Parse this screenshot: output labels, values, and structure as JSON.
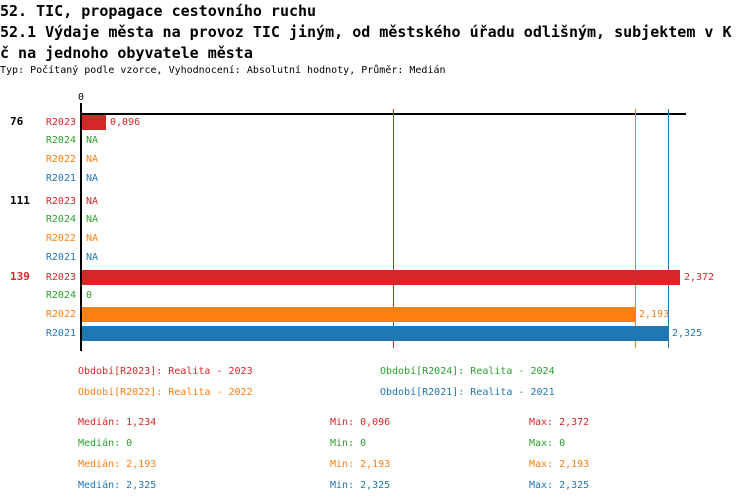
{
  "title": {
    "line1": "52. TIC, propagace cestovního ruchu",
    "line2": "52.1 Výdaje města na provoz TIC jiným, od městského úřadu odlišným, subjektem v K",
    "line3": "č na jednoho obyvatele města",
    "subtitle": "Typ: Počítaný podle vzorce, Vyhodnocení: Absolutní hodnoty, Průměr: Medián"
  },
  "colors": {
    "R2023": "#d62728",
    "R2024": "#2ca02c",
    "R2022": "#ff7f0e",
    "R2021": "#1f77b4",
    "axis": "#000000"
  },
  "axis": {
    "origin_tick_label": "0"
  },
  "chart_data": {
    "type": "bar",
    "orientation": "horizontal",
    "xlim": [
      0,
      2.39
    ],
    "x_tick_labels": [
      "0"
    ],
    "grid": false,
    "series_order": [
      "R2023",
      "R2024",
      "R2022",
      "R2021"
    ],
    "groups": [
      {
        "label": "76",
        "label_color": "#000000",
        "rows": [
          {
            "series": "R2023",
            "value": 0.096,
            "value_label": "0,096"
          },
          {
            "series": "R2024",
            "value": null,
            "value_label": "NA"
          },
          {
            "series": "R2022",
            "value": null,
            "value_label": "NA"
          },
          {
            "series": "R2021",
            "value": null,
            "value_label": "NA"
          }
        ]
      },
      {
        "label": "111",
        "label_color": "#000000",
        "rows": [
          {
            "series": "R2023",
            "value": null,
            "value_label": "NA"
          },
          {
            "series": "R2024",
            "value": null,
            "value_label": "NA"
          },
          {
            "series": "R2022",
            "value": null,
            "value_label": "NA"
          },
          {
            "series": "R2021",
            "value": null,
            "value_label": "NA"
          }
        ]
      },
      {
        "label": "139",
        "label_color": "#d62728",
        "rows": [
          {
            "series": "R2023",
            "value": 2.372,
            "value_label": "2,372"
          },
          {
            "series": "R2024",
            "value": 0,
            "value_label": "0"
          },
          {
            "series": "R2022",
            "value": 2.193,
            "value_label": "2,193"
          },
          {
            "series": "R2021",
            "value": 2.325,
            "value_label": "2,325"
          }
        ]
      }
    ],
    "median_lines": [
      {
        "series": "R2023",
        "value": 1.234
      },
      {
        "series": "R2022",
        "value": 2.193
      },
      {
        "series": "R2021",
        "value": 2.325
      }
    ]
  },
  "legend": [
    {
      "series": "R2023",
      "label": "Období[R2023]: Realita - 2023"
    },
    {
      "series": "R2024",
      "label": "Období[R2024]: Realita - 2024"
    },
    {
      "series": "R2022",
      "label": "Období[R2022]: Realita - 2022"
    },
    {
      "series": "R2021",
      "label": "Období[R2021]: Realita - 2021"
    }
  ],
  "stats": [
    {
      "series": "R2023",
      "median": "Medián: 1,234",
      "min": "Min: 0,096",
      "max": "Max: 2,372"
    },
    {
      "series": "R2024",
      "median": "Medián: 0",
      "min": "Min: 0",
      "max": "Max: 0"
    },
    {
      "series": "R2022",
      "median": "Medián: 2,193",
      "min": "Min: 2,193",
      "max": "Max: 2,193"
    },
    {
      "series": "R2021",
      "median": "Medián: 2,325",
      "min": "Min: 2,325",
      "max": "Max: 2,325"
    }
  ]
}
